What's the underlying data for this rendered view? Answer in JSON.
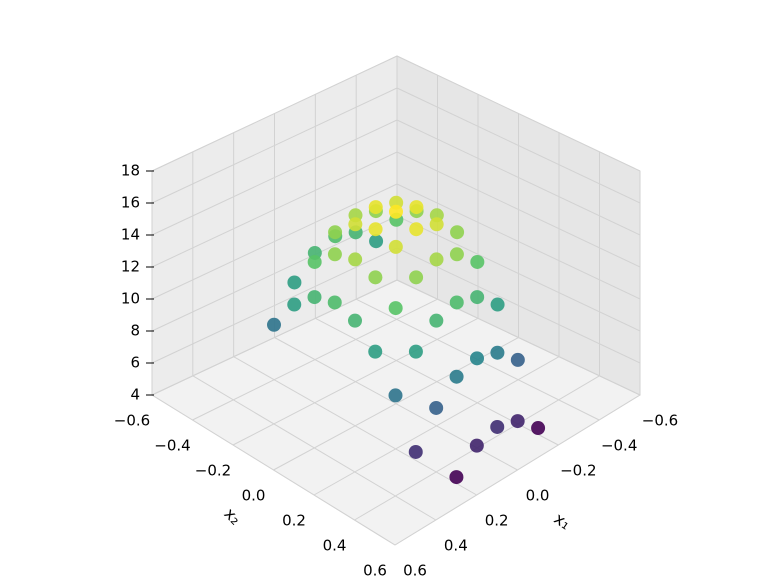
{
  "chart_data": {
    "type": "scatter3d",
    "xlabel": "x₁",
    "ylabel": "x₂",
    "x": [
      -0.2,
      -0.2,
      -0.2,
      -0.2,
      -0.2,
      -0.2,
      -0.2,
      -0.2,
      -0.2,
      -0.1,
      -0.1,
      -0.1,
      -0.1,
      -0.1,
      -0.1,
      -0.1,
      -0.1,
      -0.1,
      0,
      0,
      0,
      0,
      0,
      0,
      0,
      0,
      0,
      0.1,
      0.1,
      0.1,
      0.1,
      0.1,
      0.1,
      0.1,
      0.1,
      0.1,
      0.2,
      0.2,
      0.2,
      0.2,
      0.2,
      0.2,
      0.2,
      0.2,
      0.2,
      0.3,
      0.3,
      0.3,
      0.3,
      0.3,
      0.3,
      0.3,
      0.3
    ],
    "y": [
      -0.3,
      -0.2,
      -0.1,
      0,
      0.1,
      0.2,
      0.3,
      0.4,
      0.5,
      -0.3,
      -0.2,
      -0.1,
      0,
      0.1,
      0.2,
      0.3,
      0.4,
      0.5,
      -0.3,
      -0.2,
      -0.1,
      0,
      0.1,
      0.2,
      0.3,
      0.4,
      0.5,
      -0.3,
      -0.2,
      -0.1,
      0,
      0.1,
      0.2,
      0.3,
      0.4,
      0.5,
      -0.3,
      -0.2,
      -0.1,
      0,
      0.1,
      0.2,
      0.3,
      0.4,
      0.5,
      -0.3,
      -0.2,
      -0.1,
      0,
      0.1,
      0.2,
      0.3,
      0.4
    ],
    "z": [
      10.8,
      12.8,
      14.0,
      14.4,
      14.0,
      12.8,
      10.8,
      8.0,
      4.4,
      12.0,
      14.0,
      15.2,
      15.6,
      15.2,
      14.0,
      12.0,
      9.2,
      5.6,
      12.4,
      14.4,
      15.6,
      16,
      15.6,
      14.4,
      12.4,
      9.6,
      6,
      12,
      14,
      15.2,
      15.6,
      15.2,
      14,
      12,
      9.2,
      5.6,
      10.8,
      12.8,
      14,
      14.4,
      14,
      12.8,
      10.8,
      8,
      4.4,
      8.8,
      10.8,
      12,
      12.4,
      12,
      10.8,
      8.8,
      6
    ],
    "colormap": "viridis",
    "xlim": [
      -0.6,
      0.6
    ],
    "ylim": [
      -0.6,
      0.6
    ],
    "zlim": [
      4,
      18
    ],
    "xticks": [
      {
        "value": -0.6,
        "label": "−0.6"
      },
      {
        "value": -0.4,
        "label": "−0.4"
      },
      {
        "value": -0.2,
        "label": "−0.2"
      },
      {
        "value": 0,
        "label": "0.0"
      },
      0.2,
      0.4,
      0.6
    ],
    "yticks": [
      {
        "value": -0.6,
        "label": "−0.6"
      },
      {
        "value": -0.4,
        "label": "−0.4"
      },
      {
        "value": -0.2,
        "label": "−0.2"
      },
      {
        "value": 0,
        "label": "0.0"
      },
      0.2,
      0.4,
      0.6
    ],
    "zticks": [
      4,
      6,
      8,
      10,
      12,
      14,
      16,
      18
    ],
    "grid": true
  }
}
